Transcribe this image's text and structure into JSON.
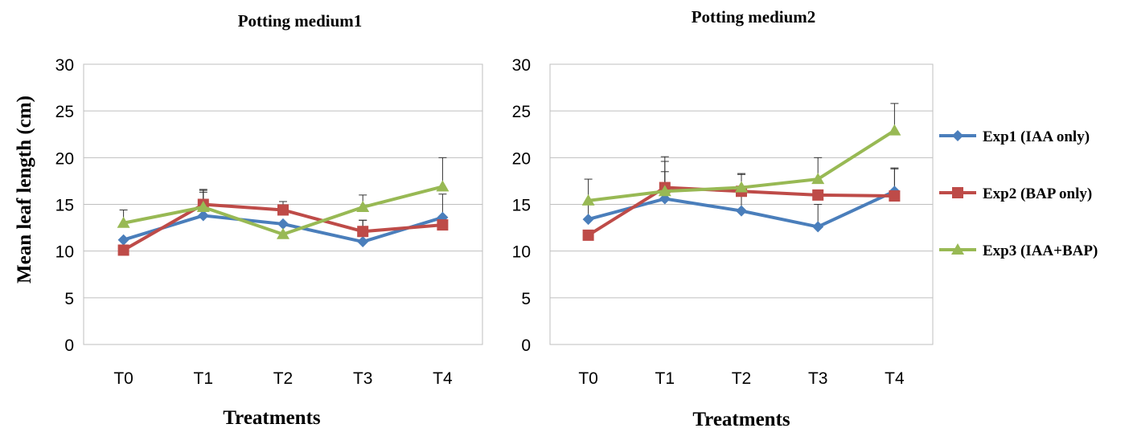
{
  "figure": {
    "ylabel": "Mean leaf length (cm)",
    "legend_position": "right",
    "series_styles": [
      {
        "name": "Exp1 (IAA only)",
        "color": "#4a7ebb",
        "marker": "diamond"
      },
      {
        "name": "Exp2 (BAP only)",
        "color": "#be4b48",
        "marker": "square"
      },
      {
        "name": "Exp3 (IAA+BAP)",
        "color": "#98b954",
        "marker": "triangle"
      }
    ]
  },
  "chart_data": [
    {
      "type": "line",
      "title": "Potting medium1",
      "xlabel": "Treatments",
      "ylabel": "Mean leaf length (cm)",
      "categories": [
        "T0",
        "T1",
        "T2",
        "T3",
        "T4"
      ],
      "ylim": [
        0,
        30
      ],
      "yticks": [
        "0",
        "5",
        "10",
        "15",
        "20",
        "25",
        "30"
      ],
      "grid": true,
      "series": [
        {
          "name": "Exp1 (IAA only)",
          "values": [
            11.2,
            13.8,
            12.9,
            11.0,
            13.6
          ],
          "error_upper": [
            null,
            16.3,
            null,
            13.3,
            16.1
          ]
        },
        {
          "name": "Exp2 (BAP only)",
          "values": [
            10.1,
            15.0,
            14.4,
            12.1,
            12.8
          ],
          "error_upper": [
            null,
            16.6,
            15.3,
            13.3,
            null
          ]
        },
        {
          "name": "Exp3 (IAA+BAP)",
          "values": [
            13.0,
            14.7,
            11.8,
            14.7,
            16.9
          ],
          "error_upper": [
            14.4,
            16.5,
            null,
            16.0,
            20.0
          ]
        }
      ]
    },
    {
      "type": "line",
      "title": "Potting medium2",
      "xlabel": "Treatments",
      "categories": [
        "T0",
        "T1",
        "T2",
        "T3",
        "T4"
      ],
      "ylim": [
        0,
        30
      ],
      "yticks": [
        "0",
        "5",
        "10",
        "15",
        "20",
        "25",
        "30"
      ],
      "grid": true,
      "series": [
        {
          "name": "Exp1 (IAA only)",
          "values": [
            13.4,
            15.6,
            14.3,
            12.6,
            16.4
          ],
          "error_upper": [
            15.1,
            19.6,
            18.2,
            15.0,
            18.9
          ]
        },
        {
          "name": "Exp2 (BAP only)",
          "values": [
            11.7,
            16.8,
            16.4,
            16.0,
            15.9
          ],
          "error_upper": [
            null,
            20.1,
            18.3,
            null,
            18.8
          ]
        },
        {
          "name": "Exp3 (IAA+BAP)",
          "values": [
            15.4,
            16.4,
            16.8,
            17.7,
            22.9
          ],
          "error_upper": [
            17.7,
            18.5,
            null,
            20.0,
            25.8
          ]
        }
      ]
    }
  ]
}
